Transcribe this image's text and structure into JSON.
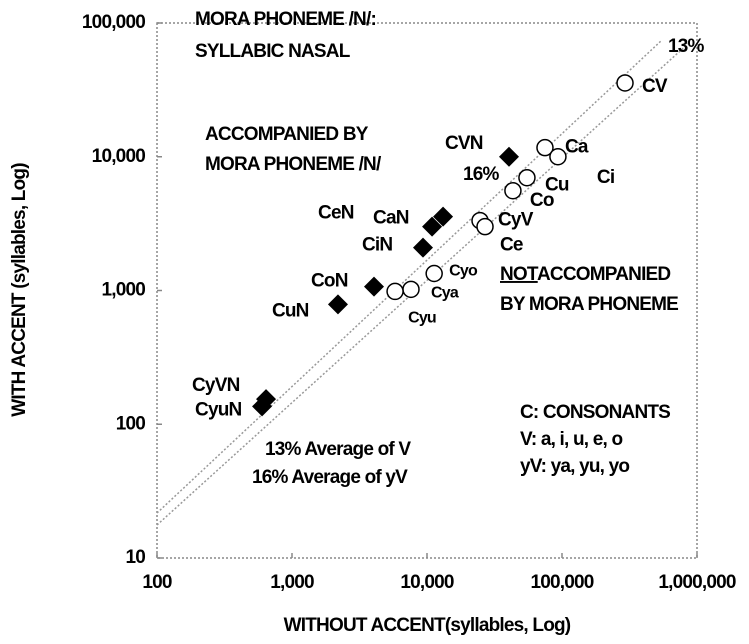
{
  "chart_data": {
    "type": "scatter",
    "xlabel": "WITHOUT ACCENT(syllables, Log)",
    "ylabel": "WITH ACCENT (syllables, Log)",
    "xscale": "log",
    "yscale": "log",
    "xlim": [
      100,
      1000000
    ],
    "xticks": [
      100,
      {
        "value": 1000,
        "label": "1,000"
      },
      {
        "value": 10000,
        "label": "10,000"
      },
      {
        "value": 100000,
        "label": "100,000"
      },
      {
        "value": 1000000,
        "label": "1,000,000"
      }
    ],
    "ylim": [
      10,
      100000
    ],
    "yticks": [
      10,
      100,
      {
        "value": 1000,
        "label": "1,000"
      },
      {
        "value": 10000,
        "label": "10,000"
      },
      {
        "value": 100000,
        "label": "100,000"
      }
    ],
    "annotations": [
      "MORA PHONEME /N/:",
      "SYLLABIC NASAL",
      "ACCOMPANIED BY",
      "MORA PHONEME /N/",
      "16%",
      "13%",
      "NOT",
      "ACCOMPANIED",
      "BY MORA PHONEME",
      "C: CONSONANTS",
      "V: a, i, u, e, o",
      "yV: ya, yu, yo",
      "13% Average of V",
      "16% Average of yV"
    ],
    "series": [
      {
        "marker": "circle",
        "color": "#000000",
        "labels": [
          "CV",
          "Ca",
          "Ci",
          "Cu",
          "Co",
          "CyV",
          "Ce",
          "Cyo",
          "Cya",
          "Cyu"
        ],
        "x": [
          293000,
          74800,
          93300,
          55000,
          43300,
          24700,
          26900,
          11300,
          7610,
          5800
        ],
        "values": [
          35600,
          11700,
          10000,
          6970,
          5570,
          3330,
          3000,
          1340,
          1020,
          984
        ]
      },
      {
        "marker": "diamond",
        "color": "#000000",
        "labels": [
          "CVN",
          "CaN",
          "CeN",
          "CiN",
          "CoN",
          "CuN",
          "CyVN",
          "CyuN"
        ],
        "x": [
          40500,
          13150,
          10900,
          9340,
          4050,
          2190,
          642,
          600
        ],
        "values": [
          10000,
          3570,
          3000,
          2090,
          1070,
          787,
          154,
          136
        ]
      }
    ]
  }
}
